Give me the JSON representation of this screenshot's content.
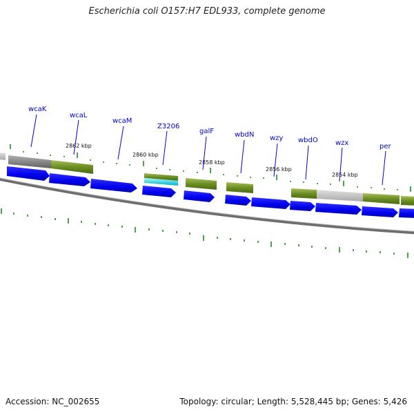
{
  "title": "Escherichia coli O157:H7 EDL933, complete genome",
  "footer": {
    "accession": "Accession: NC_002655",
    "summary": "Topology: circular; Length: 5,528,445 bp; Genes: 5,426"
  },
  "gene_labels": [
    "wcaK",
    "wcaL",
    "wcaM",
    "Z3206",
    "galF",
    "wbdN",
    "wzy",
    "wbdO",
    "wzx",
    "per"
  ],
  "position_labels": [
    "2862 kbp",
    "2860 kbp",
    "2858 kbp",
    "2856 kbp",
    "2854 kbp"
  ],
  "colors": {
    "gene_label": "#0000cc",
    "cds_arrow": "#0000ee",
    "feature_green": "#6b8e23",
    "feature_gray": "#bdbdbd",
    "feature_cyan": "#00cccc",
    "tick_green": "#228b22",
    "backbone": "#808080"
  }
}
